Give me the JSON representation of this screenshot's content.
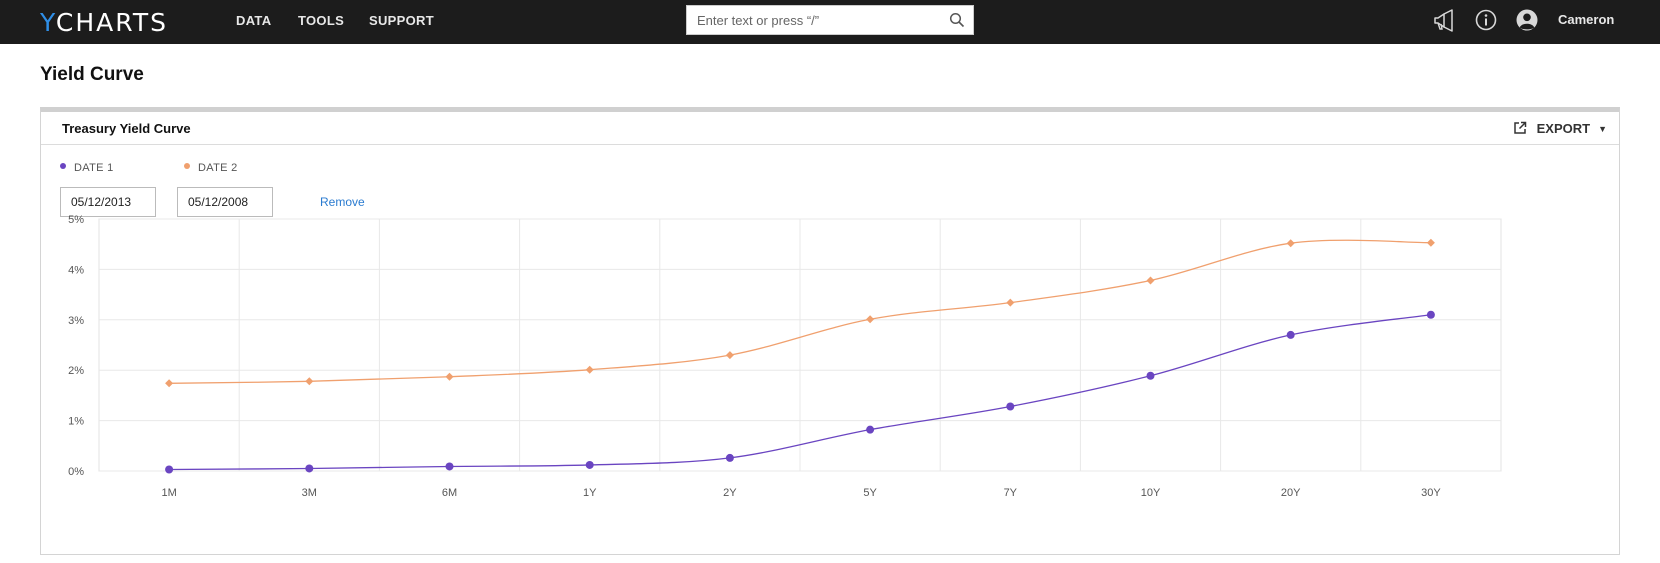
{
  "app": {
    "logo_y": "Y",
    "logo_rest": "CHARTS",
    "nav": [
      "DATA",
      "TOOLS",
      "SUPPORT"
    ],
    "search_placeholder": "Enter text or press “/”",
    "username": "Cameron",
    "icons": [
      "megaphone-icon",
      "info-icon",
      "user-avatar-icon",
      "search-icon"
    ]
  },
  "page": {
    "title": "Yield Curve"
  },
  "card": {
    "title": "Treasury Yield Curve",
    "export_label": "EXPORT",
    "legend": [
      {
        "label": "DATE 1",
        "color": "#6a45c1"
      },
      {
        "label": "DATE 2",
        "color": "#f0a06e"
      }
    ],
    "date1_value": "05/12/2013",
    "date2_value": "05/12/2008",
    "remove_label": "Remove"
  },
  "chart_data": {
    "type": "line",
    "categories": [
      "1M",
      "3M",
      "6M",
      "1Y",
      "2Y",
      "5Y",
      "7Y",
      "10Y",
      "20Y",
      "30Y"
    ],
    "y_ticks": [
      "0%",
      "1%",
      "2%",
      "3%",
      "4%",
      "5%"
    ],
    "ylim": [
      0,
      5
    ],
    "grid": true,
    "series": [
      {
        "name": "DATE 1",
        "color": "#6a45c1",
        "marker": "circle",
        "values": [
          0.03,
          0.05,
          0.09,
          0.12,
          0.26,
          0.82,
          1.28,
          1.89,
          2.7,
          3.1
        ]
      },
      {
        "name": "DATE 2",
        "color": "#f0a06e",
        "marker": "diamond",
        "values": [
          1.74,
          1.78,
          1.87,
          2.01,
          2.3,
          3.01,
          3.34,
          3.78,
          4.52,
          4.53
        ]
      }
    ]
  }
}
